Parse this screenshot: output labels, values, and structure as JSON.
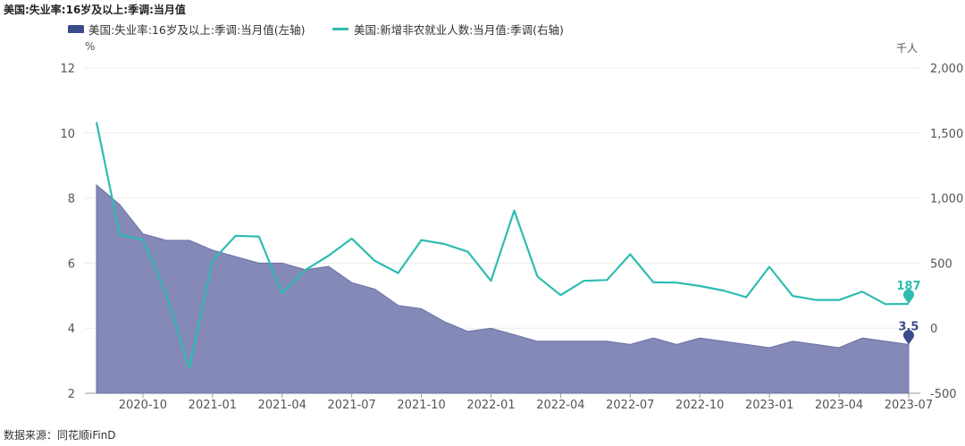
{
  "chart_data": {
    "type": "area+line",
    "title": "美国:失业率:16岁及以上:季调:当月值",
    "source": "数据来源：同花顺iFinD",
    "y_left": {
      "unit": "%",
      "ticks": [
        "2",
        "4",
        "6",
        "8",
        "10",
        "12"
      ],
      "range": [
        2,
        12
      ]
    },
    "y_right": {
      "unit": "千人",
      "ticks": [
        "-500",
        "0",
        "500",
        "1,000",
        "1,500",
        "2,000"
      ],
      "range": [
        -500,
        2000
      ]
    },
    "x_ticks": [
      "2020-10",
      "2021-01",
      "2021-04",
      "2021-07",
      "2021-10",
      "2022-01",
      "2022-04",
      "2022-07",
      "2022-10",
      "2023-01",
      "2023-04",
      "2023-07"
    ],
    "months": [
      "2020-08",
      "2020-09",
      "2020-10",
      "2020-11",
      "2020-12",
      "2021-01",
      "2021-02",
      "2021-03",
      "2021-04",
      "2021-05",
      "2021-06",
      "2021-07",
      "2021-08",
      "2021-09",
      "2021-10",
      "2021-11",
      "2021-12",
      "2022-01",
      "2022-02",
      "2022-03",
      "2022-04",
      "2022-05",
      "2022-06",
      "2022-07",
      "2022-08",
      "2022-09",
      "2022-10",
      "2022-11",
      "2022-12",
      "2023-01",
      "2023-02",
      "2023-03",
      "2023-04",
      "2023-05",
      "2023-06",
      "2023-07"
    ],
    "series": [
      {
        "name": "美国:失业率:16岁及以上:季调:当月值(左轴)",
        "type": "area",
        "axis": "left",
        "color": "#3c4b8c",
        "values": [
          8.4,
          7.8,
          6.9,
          6.7,
          6.7,
          6.4,
          6.2,
          6.0,
          6.0,
          5.8,
          5.9,
          5.4,
          5.2,
          4.7,
          4.6,
          4.2,
          3.9,
          4.0,
          3.8,
          3.6,
          3.6,
          3.6,
          3.6,
          3.5,
          3.7,
          3.5,
          3.7,
          3.6,
          3.5,
          3.4,
          3.6,
          3.5,
          3.4,
          3.7,
          3.6,
          3.5
        ],
        "last_label": "3.5"
      },
      {
        "name": "美国:新增非农就业人数:当月值:季调(右轴)",
        "type": "line",
        "axis": "right",
        "color": "#2ebcb1",
        "values": [
          1583,
          716,
          680,
          264,
          -306,
          520,
          710,
          704,
          269,
          447,
          557,
          689,
          517,
          424,
          677,
          647,
          588,
          364,
          904,
          398,
          254,
          364,
          370,
          568,
          352,
          350,
          324,
          290,
          239,
          472,
          248,
          217,
          217,
          281,
          185,
          187
        ],
        "last_label": "187"
      }
    ]
  }
}
